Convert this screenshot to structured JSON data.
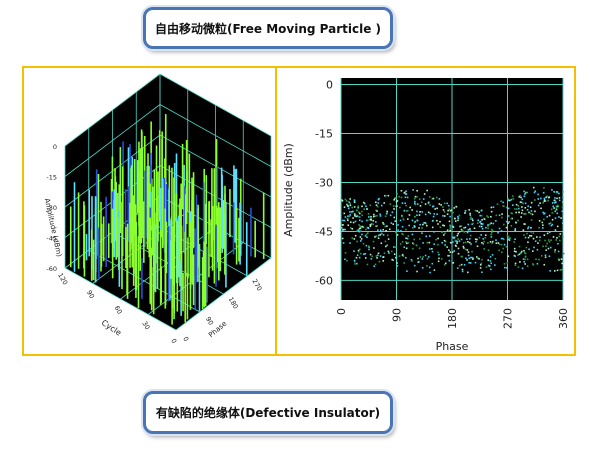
{
  "captions": {
    "top": "自由移动微粒(Free Moving Particle )",
    "bottom": "有缺陷的绝缘体(Defective Insulator)"
  },
  "colors": {
    "frame": "#f2c000",
    "caption_border": "#4a75b5",
    "plot_bg": "#000000",
    "grid": "#4fd6c4",
    "bar_green": "#8cff2e",
    "bar_cyan": "#5de0ff",
    "bar_blue": "#2a4fd8",
    "dot_light": "#b8f0c0",
    "dot_cyan": "#3fd4ff",
    "dot_green": "#2e9b48"
  },
  "chart_data": [
    {
      "type": "bar",
      "projection": "3d",
      "xlabel": "Cycle",
      "ylabel": "Phase",
      "zlabel": "Amplitude (dBm)",
      "x_ticks": [
        "0",
        "30",
        "60",
        "90",
        "120"
      ],
      "y_ticks": [
        "0",
        "90",
        "180",
        "270",
        "360"
      ],
      "z_ticks": [
        "0",
        "-15",
        "-30",
        "-45",
        "-60"
      ],
      "xlim": [
        0,
        120
      ],
      "ylim": [
        0,
        360
      ],
      "zlim": [
        -60,
        0
      ],
      "grid": true,
      "description_of_values": "dense random green spikes rising from the floor at about -60 dBm to around -15 dBm across all cycles and phases"
    },
    {
      "type": "scatter",
      "xlabel": "Phase",
      "ylabel": "Amplitude (dBm)",
      "x_ticks": [
        "0",
        "90",
        "180",
        "270",
        "360"
      ],
      "y_ticks": [
        "0",
        "-15",
        "-30",
        "-45",
        "-60"
      ],
      "xlim": [
        0,
        360
      ],
      "ylim": [
        -66,
        2
      ],
      "grid": true,
      "series": [
        {
          "points_band": {
            "phase_range": [
              0,
              360
            ],
            "amplitude_upper_by_phase": [
              [
                0,
                -34
              ],
              [
                45,
                -36
              ],
              [
                90,
                -32
              ],
              [
                135,
                -31
              ],
              [
                180,
                -37
              ],
              [
                225,
                -38
              ],
              [
                270,
                -34
              ],
              [
                315,
                -31
              ],
              [
                360,
                -32
              ]
            ],
            "amplitude_lower_by_phase": [
              [
                0,
                -55
              ],
              [
                90,
                -57
              ],
              [
                180,
                -58
              ],
              [
                270,
                -57
              ],
              [
                360,
                -57
              ]
            ]
          }
        }
      ]
    }
  ]
}
